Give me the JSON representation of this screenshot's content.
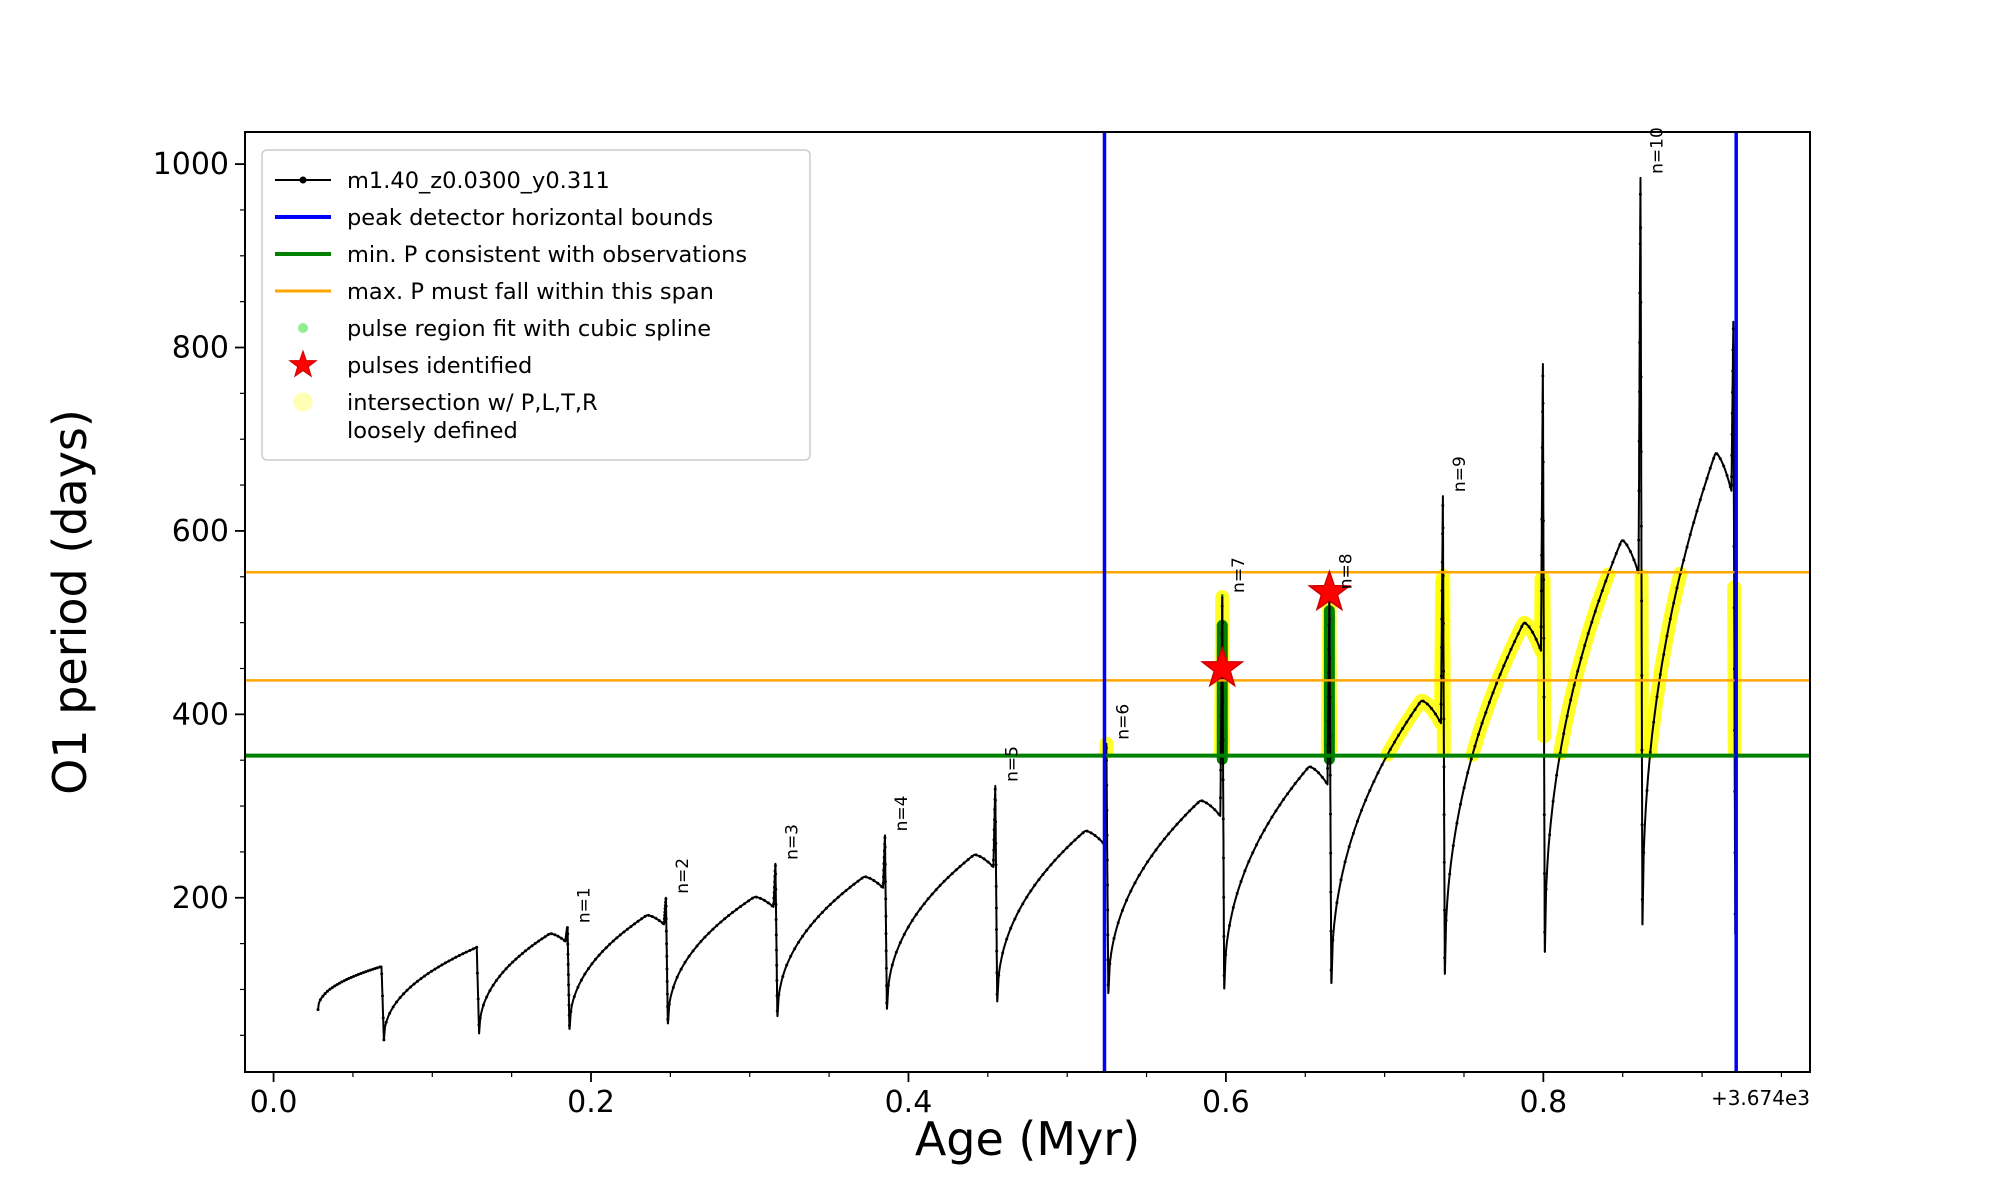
{
  "legend": {
    "entries": [
      {
        "label": "m1.40_z0.0300_y0.311",
        "marker": "line-dot",
        "color": "#000000"
      },
      {
        "label": "peak detector horizontal bounds",
        "marker": "line",
        "color": "#0000ff"
      },
      {
        "label": "min. P consistent with observations",
        "marker": "line",
        "color": "#008000"
      },
      {
        "label": "max. P must fall within this span",
        "marker": "line",
        "color": "#ffa500"
      },
      {
        "label": "pulse region fit with cubic spline",
        "marker": "dot-small",
        "color": "#90ee90"
      },
      {
        "label": "pulses identified",
        "marker": "star",
        "color": "#ff0000"
      },
      {
        "label": "intersection w/ P,L,T,R\nloosely defined",
        "marker": "dot-large",
        "color": "#ffffb3"
      }
    ]
  },
  "chart_data": {
    "type": "line",
    "title": "",
    "xlabel": "Age (Myr)",
    "ylabel": "O1 period (days)",
    "x_offset": "+3.674e3",
    "xlim": [
      -0.018,
      0.968
    ],
    "ylim": [
      10,
      1035
    ],
    "xticks": [
      0.0,
      0.2,
      0.4,
      0.6,
      0.8
    ],
    "yticks": [
      200,
      400,
      600,
      800,
      1000
    ],
    "grid": false,
    "legend_position": "upper left",
    "colors": {
      "series": "#000000",
      "blue_bounds": "#0000ff",
      "min_p": "#008000",
      "max_p_span": "#ffa500",
      "pulse_fit": "#008000",
      "pulse_fit_legend": "#90ee90",
      "pulses": "#ff0000",
      "intersection": "#ffff00",
      "intersection_legend": "#ffffb3"
    },
    "vlines_blue_x": [
      0.5235,
      0.9215
    ],
    "hline_green_y": 355,
    "hlines_orange_y": [
      437,
      555
    ],
    "yellow_band": {
      "xmin": 0.5235,
      "xmax": 0.9215,
      "ymin": 355,
      "ymax": 555
    },
    "pulse_fit_bars": [
      {
        "x": 0.5977,
        "y_lo": 351,
        "y_hi": 497,
        "whisker_hi": 531
      },
      {
        "x": 0.6652,
        "y_lo": 351,
        "y_hi": 513,
        "whisker_hi": 520
      }
    ],
    "pulses": [
      {
        "x": 0.5977,
        "y": 450
      },
      {
        "x": 0.6652,
        "y": 533
      }
    ],
    "cycles": [
      {
        "x0": 0.028,
        "y0": 78,
        "x1": 0.068,
        "ypeak": 125,
        "spike": null,
        "label": null
      },
      {
        "x0": 0.0695,
        "y0": 45,
        "x1": 0.128,
        "ypeak": 146,
        "spike": null,
        "label": null
      },
      {
        "x0": 0.1295,
        "y0": 52,
        "x1": 0.184,
        "ypeak": 161,
        "spike": 168,
        "label": "n=1"
      },
      {
        "x0": 0.1865,
        "y0": 57,
        "x1": 0.246,
        "ypeak": 181,
        "spike": 200,
        "label": "n=2"
      },
      {
        "x0": 0.2485,
        "y0": 63,
        "x1": 0.315,
        "ypeak": 201,
        "spike": 237,
        "label": "n=3"
      },
      {
        "x0": 0.3175,
        "y0": 71,
        "x1": 0.384,
        "ypeak": 223,
        "spike": 268,
        "label": "n=4"
      },
      {
        "x0": 0.3865,
        "y0": 79,
        "x1": 0.4535,
        "ypeak": 247,
        "spike": 322,
        "label": "n=5"
      },
      {
        "x0": 0.456,
        "y0": 87,
        "x1": 0.5235,
        "ypeak": 273,
        "spike": 368,
        "label": "n=6"
      },
      {
        "x0": 0.526,
        "y0": 96,
        "x1": 0.5965,
        "ypeak": 306,
        "spike": 528,
        "label": "n=7"
      },
      {
        "x0": 0.599,
        "y0": 101,
        "x1": 0.664,
        "ypeak": 343,
        "spike": 532,
        "label": "n=8"
      },
      {
        "x0": 0.6665,
        "y0": 107,
        "x1": 0.7355,
        "ypeak": 415,
        "spike": 638,
        "label": "n=9"
      },
      {
        "x0": 0.738,
        "y0": 117,
        "x1": 0.7985,
        "ypeak": 500,
        "spike": 782,
        "label": null
      },
      {
        "x0": 0.801,
        "y0": 141,
        "x1": 0.86,
        "ypeak": 590,
        "spike": 985,
        "label": "n=10"
      },
      {
        "x0": 0.8625,
        "y0": 171,
        "x1": 0.9185,
        "ypeak": 685,
        "spike": 828,
        "label": null,
        "end_drop_y": 160
      }
    ]
  }
}
